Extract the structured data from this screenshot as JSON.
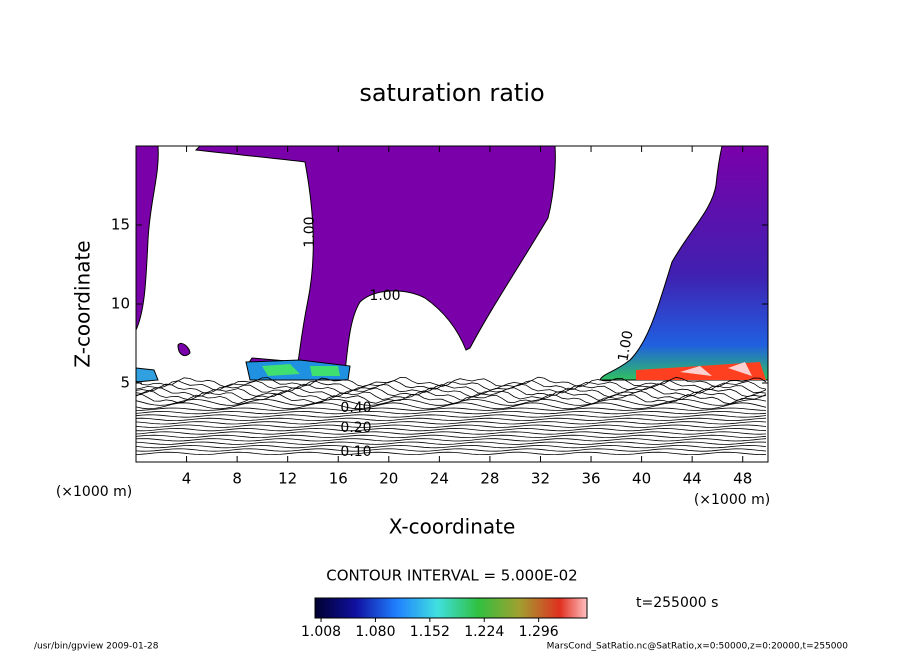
{
  "chart_data": {
    "type": "contour",
    "title": "saturation ratio",
    "x_label": "X-coordinate",
    "y_label": "Z-coordinate",
    "x_unit": "(×1000 m)",
    "y_unit": "(×1000 m)",
    "xlim": [
      0,
      50
    ],
    "ylim": [
      0,
      20
    ],
    "xticks": [
      4,
      8,
      12,
      16,
      20,
      24,
      28,
      32,
      36,
      40,
      44,
      48
    ],
    "yticks": [
      5,
      10,
      15
    ],
    "contour_labels": [
      "1.00",
      "1.00",
      "1.00",
      "0.10",
      "0.20",
      "0.40"
    ],
    "contour_interval": "CONTOUR INTERVAL = 5.000E-02",
    "colorbar_lim": [
      1.0,
      1.36
    ],
    "colorbar_ticks": [
      1.008,
      {
        "value": 1.08,
        "label": "1.080"
      },
      1.152,
      1.224,
      1.296
    ],
    "time": "t=255000 s",
    "footer_left": "/usr/bin/gpview  2009-01-28",
    "footer_right": "MarsCond_SatRatio.nc@SatRatio,x=0:50000,z=0:20000,t=255000"
  }
}
